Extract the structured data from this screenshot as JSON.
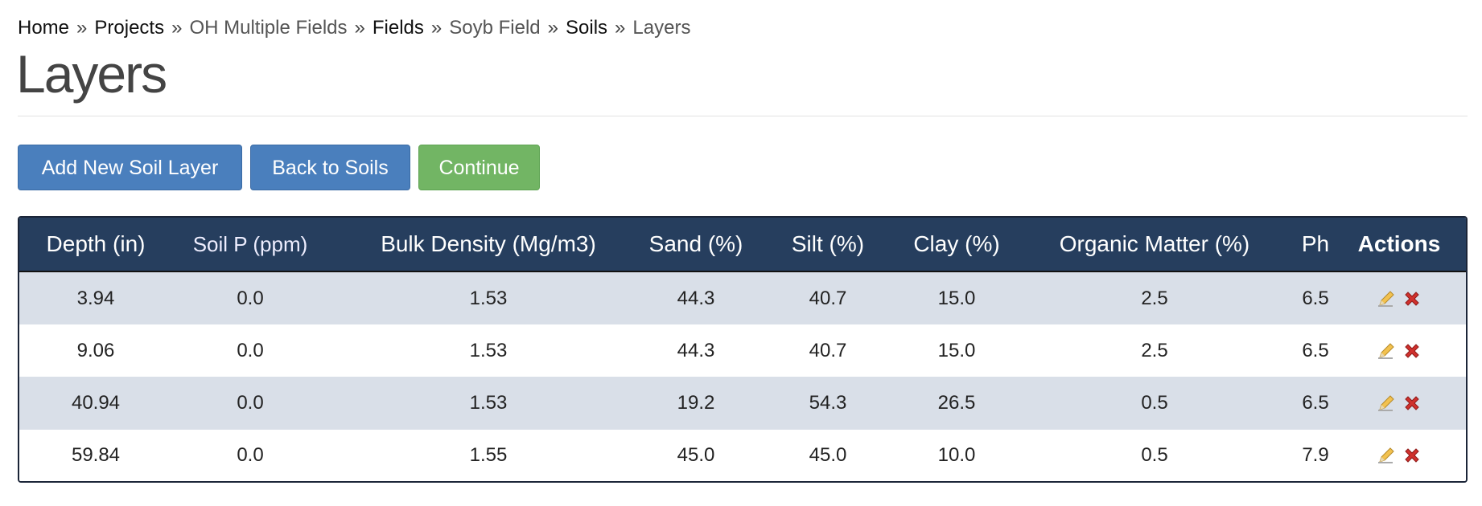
{
  "breadcrumb": {
    "separator": "»",
    "items": [
      {
        "text": "Home",
        "link": true
      },
      {
        "text": "Projects",
        "link": true
      },
      {
        "text": "OH Multiple Fields",
        "link": false
      },
      {
        "text": "Fields",
        "link": true
      },
      {
        "text": "Soyb Field",
        "link": false
      },
      {
        "text": "Soils",
        "link": true
      },
      {
        "text": "Layers",
        "link": false
      }
    ]
  },
  "header": {
    "title": "Layers"
  },
  "buttons": [
    {
      "text": "Add New Soil Layer",
      "style": "primary"
    },
    {
      "text": "Back to Soils",
      "style": "primary"
    },
    {
      "text": "Continue",
      "style": "success"
    }
  ],
  "table": {
    "columns": [
      "Depth (in)",
      "Soil P (ppm)",
      "Bulk Density (Mg/m3)",
      "Sand (%)",
      "Silt (%)",
      "Clay (%)",
      "Organic Matter (%)",
      "Ph",
      "Actions"
    ],
    "rows": [
      [
        "3.94",
        "0.0",
        "1.53",
        "44.3",
        "40.7",
        "15.0",
        "2.5",
        "6.5"
      ],
      [
        "9.06",
        "0.0",
        "1.53",
        "44.3",
        "40.7",
        "15.0",
        "2.5",
        "6.5"
      ],
      [
        "40.94",
        "0.0",
        "1.53",
        "19.2",
        "54.3",
        "26.5",
        "0.5",
        "6.5"
      ],
      [
        "59.84",
        "0.0",
        "1.55",
        "45.0",
        "45.0",
        "10.0",
        "0.5",
        "7.9"
      ]
    ]
  }
}
